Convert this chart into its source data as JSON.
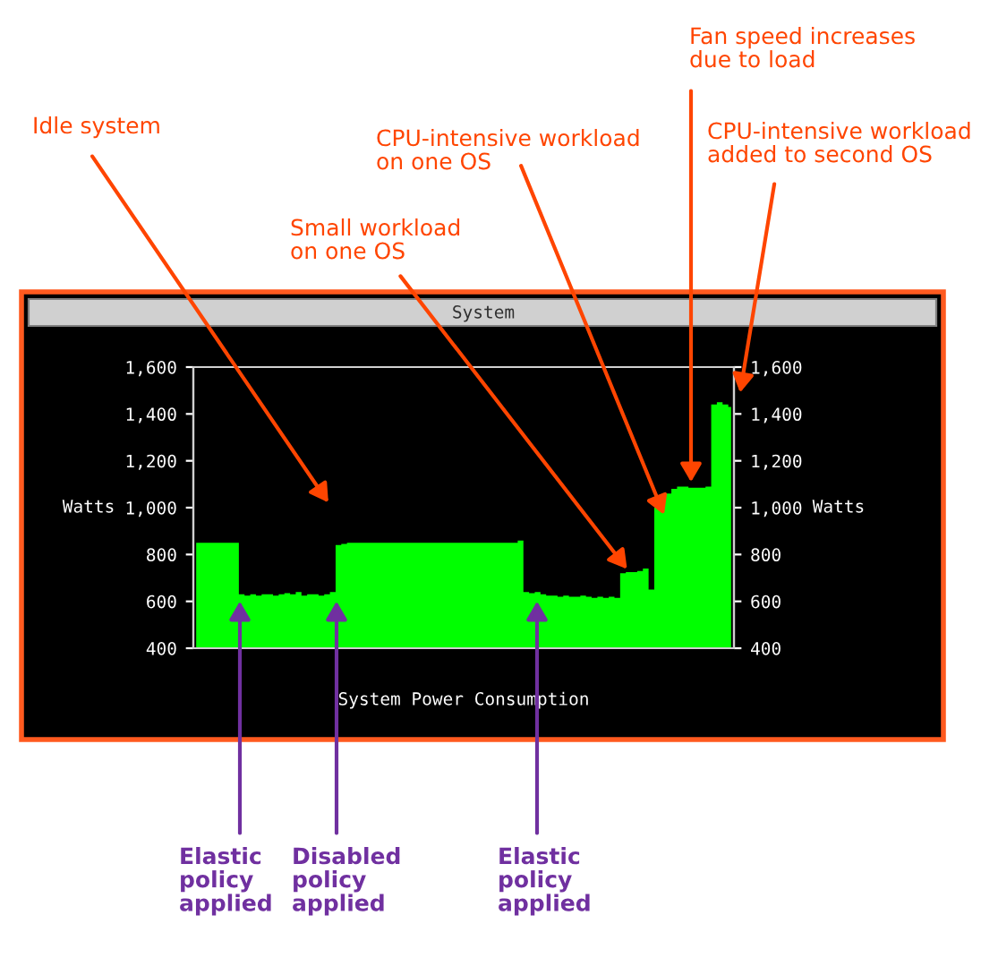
{
  "chart_data": {
    "type": "area",
    "title": "System",
    "xlabel": "System Power Consumption",
    "ylabel": "Watts",
    "y2label": "Watts",
    "categories": [
      null,
      null,
      null,
      null,
      null,
      null,
      null,
      null,
      null,
      null,
      null,
      null,
      null,
      null,
      null,
      null,
      null,
      null,
      null,
      null,
      null,
      null,
      null,
      null,
      null,
      null,
      null,
      null,
      null,
      null,
      null,
      null,
      null,
      null,
      null,
      null,
      null,
      null,
      null,
      null,
      null,
      null,
      null,
      null,
      null,
      null,
      null,
      null,
      null,
      null,
      null,
      null,
      null,
      null,
      null,
      null,
      null,
      null,
      null,
      null,
      null,
      null,
      null,
      null,
      null,
      null,
      null,
      null,
      null,
      null,
      null,
      null,
      null,
      null,
      null,
      null,
      null,
      null,
      null,
      null,
      null,
      null,
      null,
      null,
      null,
      null,
      null,
      null,
      null,
      null,
      null,
      null,
      null,
      null,
      null
    ],
    "series": [
      {
        "color": "#00ff00",
        "values": [
          850,
          850,
          850,
          850,
          850,
          850,
          850,
          850,
          630,
          625,
          630,
          625,
          630,
          630,
          625,
          630,
          635,
          630,
          640,
          625,
          630,
          630,
          625,
          630,
          640,
          840,
          845,
          850,
          850,
          850,
          850,
          850,
          850,
          850,
          850,
          850,
          850,
          850,
          850,
          850,
          850,
          850,
          850,
          850,
          850,
          850,
          850,
          850,
          850,
          850,
          850,
          850,
          850,
          850,
          850,
          850,
          850,
          860,
          640,
          635,
          640,
          630,
          625,
          625,
          620,
          625,
          620,
          620,
          625,
          620,
          615,
          620,
          615,
          620,
          615,
          720,
          725,
          725,
          730,
          740,
          650,
          1000,
          1040,
          1060,
          1080,
          1090,
          1090,
          1085,
          1085,
          1085,
          1090,
          1440,
          1450,
          1440,
          1430
        ]
      }
    ],
    "ylim": [
      400,
      1600
    ],
    "yticks": [
      {
        "value": 400,
        "label": "400"
      },
      {
        "value": 600,
        "label": "600"
      },
      {
        "value": 800,
        "label": "800"
      },
      {
        "value": 1000,
        "label": "1,000"
      },
      {
        "value": 1200,
        "label": "1,200"
      },
      {
        "value": 1400,
        "label": "1,400"
      },
      {
        "value": 1600,
        "label": "1,600"
      }
    ],
    "y2lim": [
      400,
      1600
    ],
    "y2ticks": [
      {
        "value": 400,
        "label": "400"
      },
      {
        "value": 600,
        "label": "600"
      },
      {
        "value": 800,
        "label": "800"
      },
      {
        "value": 1000,
        "label": "1,000"
      },
      {
        "value": 1200,
        "label": "1,200"
      },
      {
        "value": 1400,
        "label": "1,400"
      },
      {
        "value": 1600,
        "label": "1,600"
      }
    ],
    "grid": false,
    "legend": false,
    "annotations": [
      "Idle system",
      "Small workload\non one OS",
      "CPU-intensive workload\non one OS",
      "Fan speed increases\ndue to load",
      "CPU-intensive workload\nadded to second OS",
      "Elastic\npolicy\napplied",
      "Disabled\npolicy\napplied",
      "Elastic\npolicy\napplied"
    ]
  }
}
